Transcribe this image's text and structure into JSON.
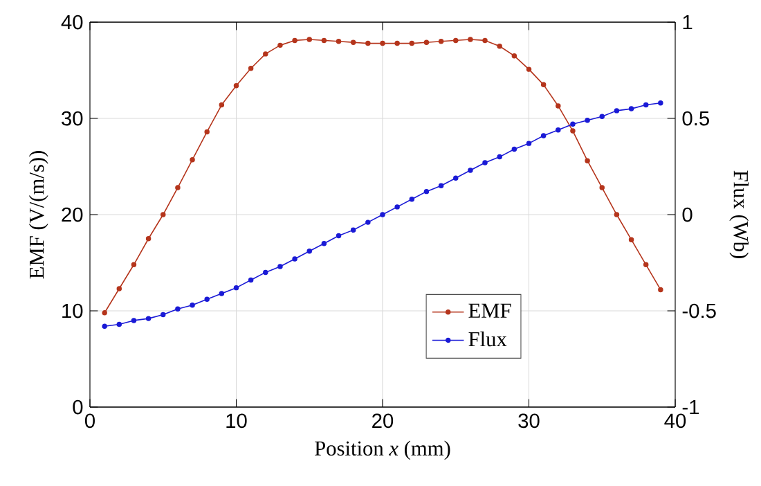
{
  "chart_data": {
    "type": "line",
    "xlabel": "Position *x* (mm)",
    "ylabel": "EMF  (V/(m/s))",
    "y2label": "Flux (Wb)",
    "x": [
      1,
      2,
      3,
      4,
      5,
      6,
      7,
      8,
      9,
      10,
      11,
      12,
      13,
      14,
      15,
      16,
      17,
      18,
      19,
      20,
      21,
      22,
      23,
      24,
      25,
      26,
      27,
      28,
      29,
      30,
      31,
      32,
      33,
      34,
      35,
      36,
      37,
      38,
      39
    ],
    "series": [
      {
        "name": "EMF",
        "color": "#b5351c",
        "values": [
          9.8,
          12.3,
          14.8,
          17.5,
          20.0,
          22.8,
          25.7,
          28.6,
          31.4,
          33.4,
          35.2,
          36.7,
          37.6,
          38.1,
          38.2,
          38.1,
          38.0,
          37.9,
          37.8,
          37.8,
          37.8,
          37.8,
          37.9,
          38.0,
          38.1,
          38.2,
          38.1,
          37.5,
          36.5,
          35.1,
          33.5,
          31.3,
          28.7,
          25.6,
          22.8,
          20.0,
          17.4,
          14.8,
          12.2
        ]
      },
      {
        "name": "Flux",
        "color": "#1a1ad6",
        "axis": "y2",
        "values": [
          -0.58,
          -0.57,
          -0.55,
          -0.54,
          -0.52,
          -0.49,
          -0.47,
          -0.44,
          -0.41,
          -0.38,
          -0.34,
          -0.3,
          -0.27,
          -0.23,
          -0.19,
          -0.15,
          -0.11,
          -0.08,
          -0.04,
          0.0,
          0.04,
          0.08,
          0.12,
          0.15,
          0.19,
          0.23,
          0.27,
          0.3,
          0.34,
          0.37,
          0.41,
          0.44,
          0.47,
          0.49,
          0.51,
          0.54,
          0.55,
          0.57,
          0.58
        ]
      }
    ],
    "xlim": [
      0,
      40
    ],
    "ylim": [
      0,
      40
    ],
    "y2lim": [
      -1,
      1
    ],
    "xticks": [
      0,
      10,
      20,
      30,
      40
    ],
    "yticks": [
      0,
      10,
      20,
      30,
      40
    ],
    "y2ticks": [
      -1,
      -0.5,
      0,
      0.5,
      1
    ],
    "grid": true,
    "legend": "bottom right",
    "marker": "circle",
    "line_style": "solid"
  }
}
